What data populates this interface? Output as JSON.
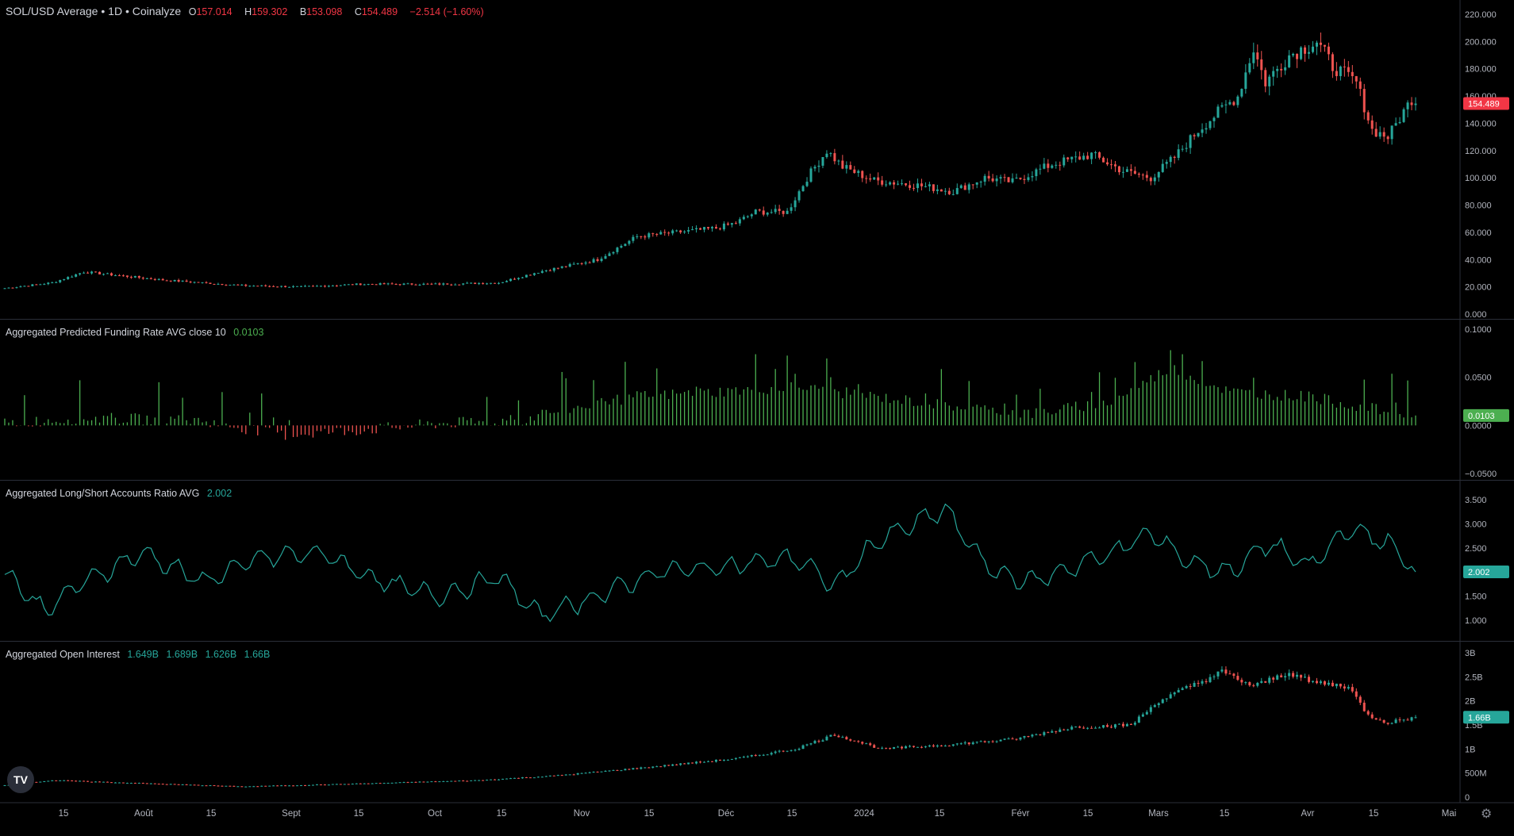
{
  "header": {
    "symbol": "SOL/USD Average • 1D • Coinalyze",
    "o_label": "O",
    "o": "157.014",
    "h_label": "H",
    "h": "159.302",
    "l_label": "B",
    "l": "153.098",
    "c_label": "C",
    "c": "154.489",
    "change": "−2.514 (−1.60%)"
  },
  "indicators": {
    "funding": {
      "name": "Aggregated Predicted Funding Rate AVG close 10",
      "value": "0.0103"
    },
    "ls": {
      "name": "Aggregated Long/Short Accounts Ratio AVG",
      "value": "2.002"
    },
    "oi": {
      "name": "Aggregated Open Interest",
      "o": "1.649B",
      "h": "1.689B",
      "l": "1.626B",
      "c": "1.66B"
    }
  },
  "colors": {
    "up": "#26a69a",
    "down": "#ef5350",
    "line": "#26a69a",
    "bg": "#000000",
    "grid_sep": "#2a2e39",
    "text": "#d1d4dc"
  },
  "logo_text": "TV",
  "settings_icon": "gear-icon",
  "chart_data": [
    {
      "type": "candlestick",
      "title": "SOL/USD Average • 1D • Coinalyze",
      "x_ticks": [
        "15",
        "Août",
        "15",
        "Sept",
        "15",
        "Oct",
        "15",
        "Nov",
        "15",
        "Déc",
        "15",
        "2024",
        "15",
        "Févr",
        "15",
        "Mars",
        "15",
        "Avr",
        "15",
        "Mai"
      ],
      "y_ticks": [
        "220.000",
        "200.000",
        "180.000",
        "160.000",
        "140.000",
        "120.000",
        "100.000",
        "80.000",
        "60.000",
        "40.000",
        "20.000",
        "0.000"
      ],
      "ylim": [
        0,
        220
      ],
      "last_value_label": "154.489",
      "close_keypoints": [
        [
          0,
          19
        ],
        [
          12,
          23
        ],
        [
          20,
          31
        ],
        [
          40,
          25
        ],
        [
          60,
          21
        ],
        [
          75,
          20
        ],
        [
          90,
          22
        ],
        [
          110,
          22
        ],
        [
          125,
          23
        ],
        [
          135,
          31
        ],
        [
          150,
          40
        ],
        [
          160,
          57
        ],
        [
          170,
          60
        ],
        [
          180,
          63
        ],
        [
          185,
          67
        ],
        [
          190,
          75
        ],
        [
          198,
          75
        ],
        [
          203,
          100
        ],
        [
          208,
          120
        ],
        [
          212,
          108
        ],
        [
          220,
          98
        ],
        [
          230,
          95
        ],
        [
          240,
          90
        ],
        [
          248,
          100
        ],
        [
          255,
          97
        ],
        [
          265,
          110
        ],
        [
          275,
          117
        ],
        [
          283,
          105
        ],
        [
          290,
          100
        ],
        [
          296,
          115
        ],
        [
          302,
          135
        ],
        [
          307,
          148
        ],
        [
          312,
          160
        ],
        [
          316,
          195
        ],
        [
          319,
          170
        ],
        [
          325,
          190
        ],
        [
          332,
          200
        ],
        [
          336,
          182
        ],
        [
          342,
          170
        ],
        [
          346,
          135
        ],
        [
          350,
          130
        ],
        [
          356,
          158
        ],
        [
          357,
          154.489
        ]
      ],
      "series_length": 358
    },
    {
      "type": "histogram",
      "title": "Aggregated Predicted Funding Rate AVG close 10",
      "y_ticks": [
        "0.1000",
        "0.0500",
        "0.0000",
        "−0.0500"
      ],
      "ylim": [
        -0.05,
        0.1
      ],
      "last_value_label": "0.0103",
      "value_keypoints": [
        [
          0,
          0.002
        ],
        [
          10,
          0.005
        ],
        [
          20,
          0.008
        ],
        [
          50,
          0.005
        ],
        [
          70,
          -0.01
        ],
        [
          90,
          -0.005
        ],
        [
          110,
          0.002
        ],
        [
          130,
          0.005
        ],
        [
          140,
          0.015
        ],
        [
          160,
          0.03
        ],
        [
          180,
          0.035
        ],
        [
          200,
          0.04
        ],
        [
          220,
          0.03
        ],
        [
          240,
          0.02
        ],
        [
          260,
          0.012
        ],
        [
          280,
          0.025
        ],
        [
          295,
          0.06
        ],
        [
          310,
          0.035
        ],
        [
          330,
          0.03
        ],
        [
          345,
          0.018
        ],
        [
          357,
          0.0103
        ]
      ],
      "series_length": 358
    },
    {
      "type": "line",
      "title": "Aggregated Long/Short Accounts Ratio AVG",
      "y_ticks": [
        "3.500",
        "3.000",
        "2.500",
        "2.000",
        "1.500",
        "1.000"
      ],
      "ylim": [
        0.8,
        3.6
      ],
      "last_value_label": "2.002",
      "value_keypoints": [
        [
          0,
          2.0
        ],
        [
          10,
          1.2
        ],
        [
          20,
          1.8
        ],
        [
          35,
          2.4
        ],
        [
          50,
          1.8
        ],
        [
          65,
          2.3
        ],
        [
          80,
          2.4
        ],
        [
          95,
          1.8
        ],
        [
          110,
          1.5
        ],
        [
          125,
          1.9
        ],
        [
          135,
          1.1
        ],
        [
          150,
          1.5
        ],
        [
          165,
          2.0
        ],
        [
          180,
          2.1
        ],
        [
          190,
          2.2
        ],
        [
          200,
          2.3
        ],
        [
          210,
          1.7
        ],
        [
          220,
          2.6
        ],
        [
          230,
          3.0
        ],
        [
          238,
          3.3
        ],
        [
          243,
          2.7
        ],
        [
          250,
          2.0
        ],
        [
          260,
          1.8
        ],
        [
          270,
          2.1
        ],
        [
          280,
          2.4
        ],
        [
          290,
          2.8
        ],
        [
          300,
          2.2
        ],
        [
          310,
          2.0
        ],
        [
          320,
          2.6
        ],
        [
          330,
          2.1
        ],
        [
          340,
          2.9
        ],
        [
          350,
          2.6
        ],
        [
          357,
          2.002
        ]
      ],
      "series_length": 358
    },
    {
      "type": "candlestick",
      "title": "Aggregated Open Interest",
      "y_ticks": [
        "3B",
        "2.5B",
        "2B",
        "1.5B",
        "1B",
        "500M",
        "0"
      ],
      "ylim": [
        0,
        3000000000
      ],
      "last_value_label": "1.66B",
      "close_keypoints": [
        [
          0,
          0.25
        ],
        [
          12,
          0.35
        ],
        [
          30,
          0.3
        ],
        [
          60,
          0.22
        ],
        [
          90,
          0.28
        ],
        [
          120,
          0.35
        ],
        [
          140,
          0.45
        ],
        [
          160,
          0.6
        ],
        [
          185,
          0.8
        ],
        [
          200,
          1.0
        ],
        [
          210,
          1.3
        ],
        [
          222,
          1.0
        ],
        [
          240,
          1.1
        ],
        [
          255,
          1.2
        ],
        [
          270,
          1.45
        ],
        [
          285,
          1.5
        ],
        [
          292,
          2.0
        ],
        [
          300,
          2.3
        ],
        [
          308,
          2.6
        ],
        [
          316,
          2.3
        ],
        [
          325,
          2.6
        ],
        [
          330,
          2.4
        ],
        [
          340,
          2.3
        ],
        [
          345,
          1.7
        ],
        [
          350,
          1.55
        ],
        [
          357,
          1.66
        ]
      ],
      "series_length": 358,
      "ohlc": {
        "o": "1.649B",
        "h": "1.689B",
        "l": "1.626B",
        "c": "1.66B"
      }
    }
  ]
}
